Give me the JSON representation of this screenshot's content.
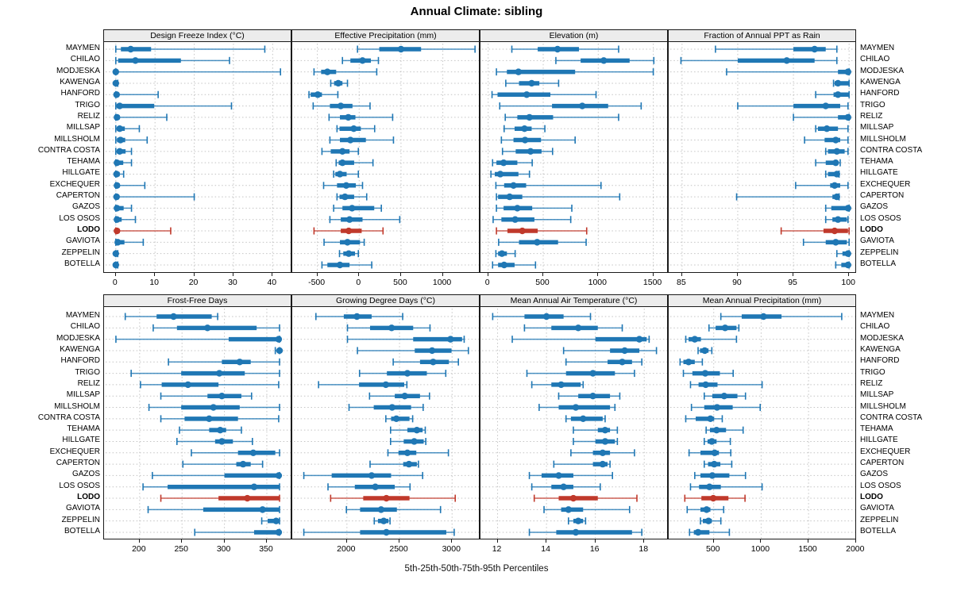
{
  "title": "Annual Climate: sibling",
  "caption": "5th-25th-50th-75th-95th Percentiles",
  "colors": {
    "series": "#1F77B4",
    "highlight": "#C0392B",
    "strip_bg": "#ECECEC",
    "grid": "#C4C4C4",
    "border": "#1A1A1A"
  },
  "chart_data": {
    "type": "dot-whisker-percentiles",
    "percentiles": [
      5,
      25,
      50,
      75,
      95
    ],
    "legend": "5th-25th-50th-75th-95th Percentiles",
    "highlight_station": "LODO",
    "stations": [
      "MAYMEN",
      "CHILAO",
      "MODJESKA",
      "KAWENGA",
      "HANFORD",
      "TRIGO",
      "RELIZ",
      "MILLSAP",
      "MILLSHOLM",
      "CONTRA COSTA",
      "TEHAMA",
      "HILLGATE",
      "EXCHEQUER",
      "CAPERTON",
      "GAZOS",
      "LOS OSOS",
      "LODO",
      "GAVIOTA",
      "ZEPPELIN",
      "BOTELLA"
    ],
    "panels": [
      {
        "id": "dfi",
        "title": "Design Freeze Index (°C)",
        "row": 0,
        "col": 0,
        "ticks": [
          0,
          10,
          20,
          30,
          40
        ],
        "range": [
          -3,
          45
        ]
      },
      {
        "id": "ep",
        "title": "Effective Precipitation (mm)",
        "row": 0,
        "col": 1,
        "ticks": [
          -500,
          0,
          500,
          1000
        ],
        "range": [
          -800,
          1450
        ]
      },
      {
        "id": "elev",
        "title": "Elevation (m)",
        "row": 0,
        "col": 2,
        "ticks": [
          0,
          500,
          1000,
          1500
        ],
        "range": [
          -70,
          1640
        ]
      },
      {
        "id": "frac",
        "title": "Fraction of Annual PPT as Rain",
        "row": 0,
        "col": 3,
        "ticks": [
          85,
          90,
          95,
          100
        ],
        "range": [
          83.8,
          100.7
        ]
      },
      {
        "id": "ffd",
        "title": "Frost-Free Days",
        "row": 1,
        "col": 0,
        "ticks": [
          200,
          250,
          300,
          350
        ],
        "range": [
          158,
          380
        ]
      },
      {
        "id": "gdd",
        "title": "Growing Degree Days (°C)",
        "row": 1,
        "col": 1,
        "ticks": [
          2000,
          2500,
          3000
        ],
        "range": [
          1480,
          3270
        ]
      },
      {
        "id": "mat",
        "title": "Mean Annual Air Temperature (°C)",
        "row": 1,
        "col": 2,
        "ticks": [
          12,
          14,
          16,
          18
        ],
        "range": [
          11.3,
          19.0
        ]
      },
      {
        "id": "map",
        "title": "Mean Annual Precipitation (mm)",
        "row": 1,
        "col": 3,
        "ticks": [
          500,
          1000,
          1500,
          2000
        ],
        "range": [
          25,
          2010
        ]
      }
    ],
    "values": {
      "dfi": [
        [
          0,
          1.3,
          3.8,
          9,
          38
        ],
        [
          0,
          0.6,
          5,
          16.6,
          29
        ],
        [
          0,
          0,
          0,
          0.3,
          42
        ],
        [
          0,
          0,
          0,
          0,
          0.5
        ],
        [
          0,
          0,
          0.2,
          0.6,
          10.8
        ],
        [
          0,
          0.2,
          1,
          9.8,
          29.5
        ],
        [
          0,
          0,
          0.3,
          1,
          13
        ],
        [
          0,
          0.3,
          1,
          2.3,
          6
        ],
        [
          0,
          0.3,
          1.2,
          2.4,
          8
        ],
        [
          0,
          0.3,
          1,
          2.5,
          4
        ],
        [
          0,
          0,
          0.3,
          1.9,
          4
        ],
        [
          0,
          0,
          0.2,
          1,
          2
        ],
        [
          0,
          0,
          0.3,
          1,
          7.4
        ],
        [
          0,
          0,
          0.2,
          0.8,
          20
        ],
        [
          0,
          0,
          0.3,
          2,
          4
        ],
        [
          0,
          0,
          0.3,
          1.5,
          5
        ],
        [
          0,
          0,
          0.3,
          1,
          14
        ],
        [
          0,
          0.2,
          0.5,
          2.2,
          7
        ],
        [
          0,
          0,
          0,
          0,
          0.5
        ],
        [
          0,
          0,
          0,
          0,
          0.5
        ]
      ],
      "ep": [
        [
          -20,
          240,
          500,
          740,
          1385
        ],
        [
          -200,
          -105,
          40,
          140,
          230
        ],
        [
          -540,
          -455,
          -380,
          -275,
          210
        ],
        [
          -340,
          -300,
          -250,
          -200,
          -140
        ],
        [
          -600,
          -580,
          -495,
          -445,
          -255
        ],
        [
          -550,
          -350,
          -220,
          -80,
          130
        ],
        [
          -360,
          -230,
          -130,
          -45,
          400
        ],
        [
          -265,
          -235,
          -65,
          20,
          185
        ],
        [
          -350,
          -230,
          -105,
          80,
          410
        ],
        [
          -445,
          -340,
          -200,
          -115,
          -10
        ],
        [
          -275,
          -245,
          -200,
          -60,
          165
        ],
        [
          -305,
          -285,
          -230,
          -150,
          -10
        ],
        [
          -425,
          -265,
          -155,
          -40,
          40
        ],
        [
          -265,
          -235,
          -170,
          -60,
          90
        ],
        [
          -305,
          -200,
          -85,
          180,
          265
        ],
        [
          -350,
          -220,
          -115,
          40,
          485
        ],
        [
          -540,
          -220,
          -125,
          30,
          285
        ],
        [
          -420,
          -230,
          -140,
          10,
          60
        ],
        [
          -235,
          -190,
          -125,
          -50,
          -10
        ],
        [
          -445,
          -380,
          -230,
          -115,
          150
        ]
      ],
      "elev": [
        [
          215,
          450,
          630,
          825,
          1185
        ],
        [
          615,
          840,
          1050,
          1285,
          1505
        ],
        [
          75,
          170,
          275,
          790,
          1500
        ],
        [
          160,
          280,
          395,
          465,
          640
        ],
        [
          35,
          85,
          350,
          565,
          980
        ],
        [
          105,
          580,
          855,
          1090,
          1390
        ],
        [
          155,
          265,
          375,
          590,
          1185
        ],
        [
          145,
          240,
          330,
          395,
          515
        ],
        [
          120,
          230,
          335,
          480,
          790
        ],
        [
          130,
          250,
          385,
          485,
          585
        ],
        [
          40,
          75,
          140,
          265,
          400
        ],
        [
          25,
          60,
          110,
          275,
          375
        ],
        [
          70,
          145,
          230,
          345,
          1025
        ],
        [
          75,
          90,
          195,
          310,
          1195
        ],
        [
          75,
          140,
          265,
          400,
          760
        ],
        [
          45,
          120,
          245,
          420,
          750
        ],
        [
          75,
          175,
          310,
          450,
          895
        ],
        [
          95,
          280,
          445,
          635,
          890
        ],
        [
          70,
          90,
          125,
          170,
          245
        ],
        [
          40,
          90,
          145,
          240,
          430
        ]
      ],
      "frac": [
        [
          88,
          95,
          96.9,
          97.9,
          98.9
        ],
        [
          84.9,
          90,
          94.4,
          96.9,
          98.9
        ],
        [
          89,
          99,
          99.9,
          100,
          100
        ],
        [
          98.6,
          98.7,
          99,
          100,
          100
        ],
        [
          97,
          98.6,
          99,
          100,
          100
        ],
        [
          90,
          95,
          97.9,
          99.2,
          99.9
        ],
        [
          95,
          99,
          99.9,
          100,
          100
        ],
        [
          97,
          97.2,
          98,
          99,
          99.9
        ],
        [
          96,
          97.8,
          98.8,
          99.2,
          99.9
        ],
        [
          97.9,
          98.1,
          98.9,
          99.6,
          99.9
        ],
        [
          97,
          97.9,
          98.8,
          99,
          99.2
        ],
        [
          97.9,
          98.1,
          98.9,
          99,
          99.1
        ],
        [
          95.2,
          98.3,
          98.7,
          99.2,
          99.9
        ],
        [
          89.9,
          98.5,
          98.9,
          99,
          99.1
        ],
        [
          97.9,
          98.4,
          99.9,
          100,
          100
        ],
        [
          97.9,
          98.5,
          99,
          99.8,
          99.9
        ],
        [
          93.9,
          97.7,
          98.7,
          99.9,
          100
        ],
        [
          95.9,
          97.9,
          98.8,
          99.8,
          100
        ],
        [
          98.9,
          99.4,
          99.9,
          100,
          100
        ],
        [
          98.8,
          99.3,
          99.9,
          100,
          100
        ]
      ],
      "ffd": [
        [
          183,
          220,
          240,
          285,
          292
        ],
        [
          216,
          244,
          280,
          338,
          365
        ],
        [
          172,
          305,
          364,
          365,
          365
        ],
        [
          360,
          363,
          365,
          365,
          365
        ],
        [
          234,
          297,
          318,
          331,
          365
        ],
        [
          190,
          249,
          294,
          324,
          365
        ],
        [
          201,
          226,
          257,
          293,
          364
        ],
        [
          225,
          280,
          297,
          320,
          332
        ],
        [
          211,
          249,
          287,
          318,
          365
        ],
        [
          225,
          253,
          282,
          316,
          364
        ],
        [
          247,
          282,
          295,
          302,
          320
        ],
        [
          244,
          289,
          297,
          310,
          333
        ],
        [
          261,
          316,
          334,
          360,
          365
        ],
        [
          251,
          314,
          322,
          331,
          345
        ],
        [
          215,
          300,
          364,
          365,
          365
        ],
        [
          204,
          233,
          335,
          365,
          365
        ],
        [
          225,
          293,
          327,
          365,
          365
        ],
        [
          210,
          275,
          345,
          365,
          365
        ],
        [
          344,
          351,
          361,
          365,
          365
        ],
        [
          265,
          335,
          364,
          365,
          365
        ]
      ],
      "gdd": [
        [
          1705,
          1970,
          2095,
          2235,
          2530
        ],
        [
          2005,
          2220,
          2425,
          2630,
          2790
        ],
        [
          2005,
          2630,
          2985,
          3095,
          3115
        ],
        [
          2100,
          2645,
          2810,
          2995,
          3155
        ],
        [
          2440,
          2695,
          2820,
          2970,
          3060
        ],
        [
          2120,
          2380,
          2575,
          2760,
          2940
        ],
        [
          1730,
          2115,
          2370,
          2545,
          2570
        ],
        [
          2215,
          2455,
          2550,
          2695,
          2785
        ],
        [
          2020,
          2255,
          2430,
          2610,
          2725
        ],
        [
          2370,
          2420,
          2470,
          2595,
          2625
        ],
        [
          2415,
          2575,
          2665,
          2720,
          2745
        ],
        [
          2415,
          2540,
          2640,
          2730,
          2750
        ],
        [
          2390,
          2490,
          2575,
          2660,
          2965
        ],
        [
          2220,
          2535,
          2590,
          2665,
          2680
        ],
        [
          1590,
          1855,
          2235,
          2420,
          2720
        ],
        [
          1820,
          2075,
          2270,
          2455,
          2600
        ],
        [
          1845,
          2155,
          2375,
          2595,
          3030
        ],
        [
          1995,
          2125,
          2325,
          2475,
          2890
        ],
        [
          2260,
          2295,
          2350,
          2395,
          2410
        ],
        [
          1590,
          2125,
          2375,
          2945,
          3020
        ]
      ],
      "mat": [
        [
          11.8,
          13.1,
          14.0,
          14.7,
          15.8
        ],
        [
          13.1,
          14.2,
          15.3,
          16.1,
          17.1
        ],
        [
          12.6,
          16.0,
          17.8,
          18.1,
          18.2
        ],
        [
          14.7,
          16.6,
          17.2,
          17.8,
          18.5
        ],
        [
          14.8,
          16.5,
          17.1,
          17.5,
          17.9
        ],
        [
          13.2,
          14.8,
          15.9,
          16.8,
          17.6
        ],
        [
          13.4,
          14.2,
          14.6,
          15.4,
          15.5
        ],
        [
          14.5,
          15.3,
          15.9,
          16.6,
          17.0
        ],
        [
          13.7,
          14.5,
          15.2,
          16.6,
          16.8
        ],
        [
          14.8,
          15.0,
          15.5,
          16.3,
          16.4
        ],
        [
          15.1,
          16.1,
          16.4,
          16.6,
          16.9
        ],
        [
          15.1,
          16.0,
          16.4,
          16.8,
          16.9
        ],
        [
          15.0,
          15.9,
          16.3,
          16.6,
          17.6
        ],
        [
          14.3,
          15.9,
          16.3,
          16.5,
          16.6
        ],
        [
          13.3,
          13.8,
          14.5,
          15.1,
          16.7
        ],
        [
          13.4,
          14.2,
          14.7,
          15.1,
          16.2
        ],
        [
          13.5,
          14.5,
          15.1,
          16.1,
          17.7
        ],
        [
          13.9,
          14.6,
          14.9,
          15.5,
          17.4
        ],
        [
          14.9,
          15.1,
          15.3,
          15.5,
          15.6
        ],
        [
          13.3,
          14.4,
          15.2,
          17.5,
          17.9
        ]
      ],
      "map": [
        [
          575,
          795,
          1025,
          1215,
          1850
        ],
        [
          450,
          520,
          620,
          740,
          765
        ],
        [
          205,
          235,
          300,
          365,
          740
        ],
        [
          335,
          355,
          405,
          445,
          480
        ],
        [
          145,
          180,
          235,
          300,
          380
        ],
        [
          180,
          275,
          410,
          565,
          705
        ],
        [
          255,
          340,
          415,
          540,
          1010
        ],
        [
          400,
          485,
          610,
          750,
          835
        ],
        [
          265,
          400,
          535,
          700,
          990
        ],
        [
          205,
          310,
          465,
          505,
          590
        ],
        [
          420,
          460,
          530,
          630,
          810
        ],
        [
          400,
          435,
          480,
          530,
          675
        ],
        [
          240,
          360,
          510,
          555,
          680
        ],
        [
          400,
          440,
          505,
          570,
          690
        ],
        [
          300,
          360,
          485,
          665,
          835
        ],
        [
          255,
          345,
          455,
          575,
          1010
        ],
        [
          195,
          370,
          495,
          655,
          830
        ],
        [
          220,
          360,
          425,
          465,
          605
        ],
        [
          360,
          385,
          445,
          480,
          575
        ],
        [
          245,
          290,
          335,
          455,
          665
        ]
      ]
    }
  }
}
